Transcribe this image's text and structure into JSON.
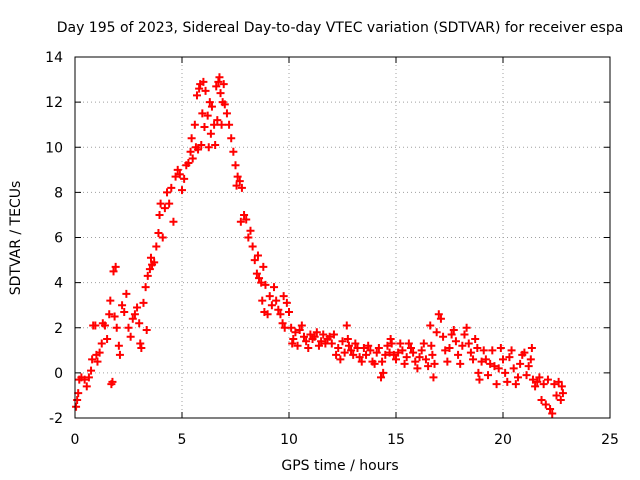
{
  "chart_data": {
    "type": "scatter",
    "title": "Day 195 of 2023, Sidereal Day-to-day VTEC variation (SDTVAR) for receiver espa",
    "xlabel": "GPS time / hours",
    "ylabel": "SDTVAR / TECUs",
    "xlim": [
      0,
      25
    ],
    "ylim": [
      -2,
      14
    ],
    "xticks": [
      0,
      5,
      10,
      15,
      20,
      25
    ],
    "yticks": [
      -2,
      0,
      2,
      4,
      6,
      8,
      10,
      12,
      14
    ],
    "grid": true,
    "marker": "+",
    "series": [
      {
        "name": "SDTVAR",
        "color": "#ff0000",
        "points": [
          [
            0.05,
            -1.5
          ],
          [
            0.1,
            -1.2
          ],
          [
            0.15,
            -0.9
          ],
          [
            0.2,
            -0.3
          ],
          [
            0.3,
            -0.2
          ],
          [
            0.45,
            -0.3
          ],
          [
            0.55,
            -0.6
          ],
          [
            0.65,
            -0.2
          ],
          [
            0.75,
            0.1
          ],
          [
            0.8,
            0.6
          ],
          [
            0.85,
            2.1
          ],
          [
            0.95,
            2.1
          ],
          [
            1.0,
            0.8
          ],
          [
            1.05,
            0.5
          ],
          [
            1.15,
            0.9
          ],
          [
            1.25,
            1.3
          ],
          [
            1.3,
            2.2
          ],
          [
            1.4,
            2.1
          ],
          [
            1.5,
            1.5
          ],
          [
            1.6,
            2.6
          ],
          [
            1.65,
            3.2
          ],
          [
            1.7,
            -0.5
          ],
          [
            1.75,
            -0.4
          ],
          [
            1.8,
            4.5
          ],
          [
            1.85,
            2.5
          ],
          [
            1.9,
            4.7
          ],
          [
            1.95,
            2.0
          ],
          [
            2.05,
            1.2
          ],
          [
            2.1,
            0.8
          ],
          [
            2.2,
            3.0
          ],
          [
            2.3,
            2.7
          ],
          [
            2.4,
            3.5
          ],
          [
            2.5,
            2.0
          ],
          [
            2.6,
            1.6
          ],
          [
            2.7,
            2.4
          ],
          [
            2.8,
            2.6
          ],
          [
            2.9,
            2.9
          ],
          [
            3.0,
            2.2
          ],
          [
            3.05,
            1.3
          ],
          [
            3.1,
            1.1
          ],
          [
            3.2,
            3.1
          ],
          [
            3.3,
            3.8
          ],
          [
            3.35,
            1.9
          ],
          [
            3.4,
            4.3
          ],
          [
            3.5,
            4.6
          ],
          [
            3.55,
            5.1
          ],
          [
            3.6,
            4.8
          ],
          [
            3.7,
            4.9
          ],
          [
            3.8,
            5.6
          ],
          [
            3.9,
            6.2
          ],
          [
            3.95,
            7.0
          ],
          [
            4.0,
            7.5
          ],
          [
            4.1,
            6.0
          ],
          [
            4.2,
            7.3
          ],
          [
            4.3,
            8.0
          ],
          [
            4.4,
            7.5
          ],
          [
            4.5,
            8.2
          ],
          [
            4.6,
            6.7
          ],
          [
            4.7,
            8.7
          ],
          [
            4.8,
            9.0
          ],
          [
            4.9,
            8.8
          ],
          [
            5.0,
            8.1
          ],
          [
            5.1,
            8.6
          ],
          [
            5.2,
            9.2
          ],
          [
            5.3,
            9.3
          ],
          [
            5.4,
            9.8
          ],
          [
            5.45,
            10.4
          ],
          [
            5.5,
            9.5
          ],
          [
            5.6,
            11.0
          ],
          [
            5.65,
            10.0
          ],
          [
            5.7,
            12.3
          ],
          [
            5.75,
            9.9
          ],
          [
            5.8,
            12.6
          ],
          [
            5.85,
            12.8
          ],
          [
            5.9,
            10.1
          ],
          [
            5.95,
            11.5
          ],
          [
            6.0,
            12.9
          ],
          [
            6.05,
            10.9
          ],
          [
            6.1,
            12.5
          ],
          [
            6.2,
            11.4
          ],
          [
            6.25,
            10.0
          ],
          [
            6.3,
            12.0
          ],
          [
            6.35,
            10.6
          ],
          [
            6.4,
            11.8
          ],
          [
            6.5,
            11.0
          ],
          [
            6.55,
            10.1
          ],
          [
            6.6,
            12.7
          ],
          [
            6.65,
            11.2
          ],
          [
            6.7,
            12.9
          ],
          [
            6.75,
            13.1
          ],
          [
            6.8,
            12.4
          ],
          [
            6.85,
            11.0
          ],
          [
            6.9,
            12.0
          ],
          [
            6.95,
            12.8
          ],
          [
            7.0,
            11.9
          ],
          [
            7.1,
            11.5
          ],
          [
            7.2,
            11.0
          ],
          [
            7.3,
            10.4
          ],
          [
            7.4,
            9.8
          ],
          [
            7.5,
            9.2
          ],
          [
            7.55,
            8.3
          ],
          [
            7.6,
            8.7
          ],
          [
            7.7,
            8.5
          ],
          [
            7.75,
            6.7
          ],
          [
            7.8,
            8.2
          ],
          [
            7.9,
            7.0
          ],
          [
            8.0,
            6.8
          ],
          [
            8.1,
            6.0
          ],
          [
            8.2,
            6.3
          ],
          [
            8.3,
            5.6
          ],
          [
            8.4,
            5.0
          ],
          [
            8.5,
            4.4
          ],
          [
            8.55,
            5.2
          ],
          [
            8.6,
            4.2
          ],
          [
            8.7,
            4.0
          ],
          [
            8.75,
            3.2
          ],
          [
            8.8,
            4.7
          ],
          [
            8.85,
            2.7
          ],
          [
            8.9,
            3.9
          ],
          [
            9.0,
            2.6
          ],
          [
            9.1,
            3.4
          ],
          [
            9.2,
            3.0
          ],
          [
            9.3,
            3.8
          ],
          [
            9.4,
            3.2
          ],
          [
            9.5,
            2.8
          ],
          [
            9.6,
            2.6
          ],
          [
            9.7,
            2.2
          ],
          [
            9.75,
            3.4
          ],
          [
            9.8,
            2.0
          ],
          [
            9.9,
            3.1
          ],
          [
            10.0,
            2.7
          ],
          [
            10.1,
            2.0
          ],
          [
            10.15,
            1.3
          ],
          [
            10.2,
            1.5
          ],
          [
            10.3,
            1.8
          ],
          [
            10.4,
            1.2
          ],
          [
            10.5,
            1.9
          ],
          [
            10.6,
            2.1
          ],
          [
            10.7,
            1.6
          ],
          [
            10.8,
            1.4
          ],
          [
            10.9,
            1.1
          ],
          [
            11.0,
            1.7
          ],
          [
            11.1,
            1.5
          ],
          [
            11.2,
            1.6
          ],
          [
            11.3,
            1.8
          ],
          [
            11.4,
            1.2
          ],
          [
            11.5,
            1.4
          ],
          [
            11.6,
            1.7
          ],
          [
            11.7,
            1.3
          ],
          [
            11.8,
            1.5
          ],
          [
            11.9,
            1.6
          ],
          [
            12.0,
            1.3
          ],
          [
            12.1,
            1.7
          ],
          [
            12.2,
            0.8
          ],
          [
            12.3,
            1.1
          ],
          [
            12.4,
            0.6
          ],
          [
            12.5,
            1.4
          ],
          [
            12.6,
            0.9
          ],
          [
            12.7,
            2.1
          ],
          [
            12.75,
            1.5
          ],
          [
            12.8,
            1.2
          ],
          [
            12.9,
            1.0
          ],
          [
            13.0,
            0.8
          ],
          [
            13.1,
            1.3
          ],
          [
            13.2,
            1.1
          ],
          [
            13.3,
            0.7
          ],
          [
            13.4,
            0.5
          ],
          [
            13.5,
            1.1
          ],
          [
            13.6,
            0.8
          ],
          [
            13.7,
            1.2
          ],
          [
            13.8,
            1.0
          ],
          [
            13.9,
            0.5
          ],
          [
            14.0,
            0.4
          ],
          [
            14.1,
            0.9
          ],
          [
            14.2,
            1.1
          ],
          [
            14.3,
            -0.2
          ],
          [
            14.35,
            0.5
          ],
          [
            14.4,
            0.0
          ],
          [
            14.5,
            0.8
          ],
          [
            14.6,
            1.2
          ],
          [
            14.7,
            0.9
          ],
          [
            14.75,
            1.5
          ],
          [
            14.8,
            1.3
          ],
          [
            14.9,
            0.8
          ],
          [
            15.0,
            0.6
          ],
          [
            15.1,
            0.9
          ],
          [
            15.2,
            1.3
          ],
          [
            15.3,
            1.0
          ],
          [
            15.4,
            0.4
          ],
          [
            15.5,
            0.7
          ],
          [
            15.6,
            1.3
          ],
          [
            15.7,
            1.1
          ],
          [
            15.8,
            0.9
          ],
          [
            15.9,
            0.5
          ],
          [
            16.0,
            0.2
          ],
          [
            16.1,
            0.7
          ],
          [
            16.2,
            1.0
          ],
          [
            16.3,
            1.3
          ],
          [
            16.4,
            0.6
          ],
          [
            16.5,
            0.3
          ],
          [
            16.6,
            2.1
          ],
          [
            16.65,
            1.2
          ],
          [
            16.7,
            0.8
          ],
          [
            16.75,
            -0.2
          ],
          [
            16.8,
            0.4
          ],
          [
            16.9,
            1.8
          ],
          [
            17.0,
            2.6
          ],
          [
            17.1,
            2.4
          ],
          [
            17.2,
            1.6
          ],
          [
            17.3,
            1.0
          ],
          [
            17.4,
            0.5
          ],
          [
            17.5,
            1.1
          ],
          [
            17.6,
            1.7
          ],
          [
            17.7,
            1.9
          ],
          [
            17.8,
            1.4
          ],
          [
            17.9,
            0.8
          ],
          [
            18.0,
            0.4
          ],
          [
            18.1,
            1.2
          ],
          [
            18.2,
            1.7
          ],
          [
            18.3,
            2.0
          ],
          [
            18.4,
            1.3
          ],
          [
            18.5,
            0.9
          ],
          [
            18.6,
            0.6
          ],
          [
            18.7,
            1.5
          ],
          [
            18.8,
            1.1
          ],
          [
            18.85,
            0.0
          ],
          [
            18.9,
            -0.3
          ],
          [
            19.0,
            0.5
          ],
          [
            19.1,
            1.0
          ],
          [
            19.2,
            0.6
          ],
          [
            19.3,
            -0.1
          ],
          [
            19.4,
            0.4
          ],
          [
            19.5,
            1.0
          ],
          [
            19.6,
            0.3
          ],
          [
            19.7,
            -0.5
          ],
          [
            19.8,
            0.2
          ],
          [
            19.9,
            1.1
          ],
          [
            20.0,
            0.6
          ],
          [
            20.1,
            0.0
          ],
          [
            20.2,
            -0.4
          ],
          [
            20.3,
            0.7
          ],
          [
            20.4,
            1.0
          ],
          [
            20.5,
            0.2
          ],
          [
            20.6,
            -0.5
          ],
          [
            20.7,
            -0.2
          ],
          [
            20.8,
            0.4
          ],
          [
            20.9,
            0.8
          ],
          [
            21.0,
            0.9
          ],
          [
            21.1,
            -0.1
          ],
          [
            21.2,
            0.3
          ],
          [
            21.3,
            0.6
          ],
          [
            21.35,
            1.1
          ],
          [
            21.4,
            -0.3
          ],
          [
            21.5,
            -0.6
          ],
          [
            21.6,
            -0.4
          ],
          [
            21.7,
            -0.2
          ],
          [
            21.8,
            -1.2
          ],
          [
            21.9,
            -0.5
          ],
          [
            22.0,
            -1.4
          ],
          [
            22.1,
            -0.3
          ],
          [
            22.2,
            -1.6
          ],
          [
            22.3,
            -1.8
          ],
          [
            22.4,
            -0.5
          ],
          [
            22.5,
            -1.0
          ],
          [
            22.6,
            -0.4
          ],
          [
            22.7,
            -1.2
          ],
          [
            22.75,
            -0.6
          ],
          [
            22.8,
            -0.9
          ]
        ]
      }
    ]
  }
}
